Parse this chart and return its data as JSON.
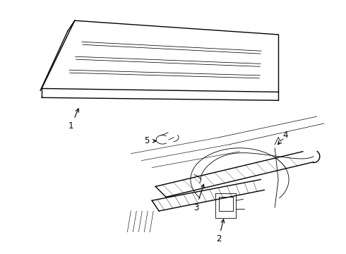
{
  "background_color": "#ffffff",
  "line_color": "#000000",
  "fig_width": 4.9,
  "fig_height": 3.6,
  "dpi": 100,
  "label_fontsize": 8.5
}
